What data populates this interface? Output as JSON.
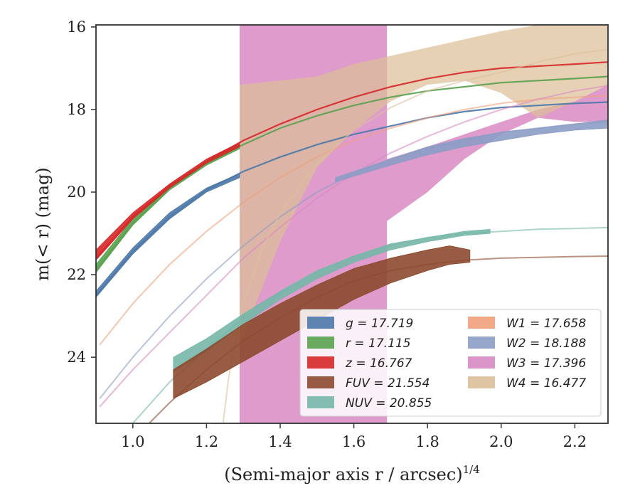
{
  "chart_data": {
    "type": "line",
    "xlabel": "(Semi-major axis r / arcsec)",
    "xlabel_exponent": "1/4",
    "ylabel": "m(< r) (mag)",
    "xlim": [
      0.9,
      2.29
    ],
    "ylim": [
      25.6,
      15.95
    ],
    "y_inverted": true,
    "xticks": [
      "1.0",
      "1.2",
      "1.4",
      "1.6",
      "1.8",
      "2.0",
      "2.2"
    ],
    "yticks": [
      "16",
      "18",
      "20",
      "22",
      "24"
    ],
    "legend_location": "lower-right",
    "legend_columns": 2,
    "series": [
      {
        "name": "g",
        "total": "17.719",
        "color": "#4c78a8",
        "model_x": [
          0.9,
          1.0,
          1.1,
          1.2,
          1.3,
          1.4,
          1.5,
          1.6,
          1.7,
          1.8,
          1.9,
          2.0,
          2.1,
          2.2,
          2.29
        ],
        "model_y": [
          22.5,
          21.45,
          20.6,
          19.95,
          19.5,
          19.15,
          18.85,
          18.6,
          18.4,
          18.2,
          18.05,
          17.95,
          17.9,
          17.85,
          17.82
        ],
        "band_x": [
          0.9,
          1.0,
          1.1,
          1.2,
          1.29
        ],
        "band_lo": [
          22.4,
          21.35,
          20.5,
          19.9,
          19.55
        ],
        "band_hi": [
          22.55,
          21.5,
          20.65,
          20.0,
          19.65
        ]
      },
      {
        "name": "r",
        "total": "17.115",
        "color": "#59a14f",
        "model_x": [
          0.9,
          1.0,
          1.1,
          1.2,
          1.3,
          1.4,
          1.5,
          1.6,
          1.7,
          1.8,
          1.9,
          2.0,
          2.1,
          2.2,
          2.29
        ],
        "model_y": [
          21.9,
          20.75,
          19.9,
          19.3,
          18.85,
          18.45,
          18.15,
          17.9,
          17.7,
          17.55,
          17.45,
          17.35,
          17.3,
          17.25,
          17.2
        ],
        "band_x": [
          0.9,
          1.0,
          1.1,
          1.2,
          1.29
        ],
        "band_lo": [
          21.75,
          20.65,
          19.85,
          19.25,
          18.85
        ],
        "band_hi": [
          21.95,
          20.8,
          19.95,
          19.35,
          18.95
        ]
      },
      {
        "name": "z",
        "total": "16.767",
        "color": "#d62728",
        "model_x": [
          0.9,
          1.0,
          1.1,
          1.2,
          1.3,
          1.4,
          1.5,
          1.6,
          1.7,
          1.8,
          1.9,
          2.0,
          2.1,
          2.2,
          2.29
        ],
        "model_y": [
          21.6,
          20.6,
          19.85,
          19.25,
          18.75,
          18.35,
          18.0,
          17.7,
          17.45,
          17.25,
          17.1,
          17.0,
          16.95,
          16.9,
          16.85
        ],
        "band_x": [
          0.9,
          1.0,
          1.1,
          1.2,
          1.29
        ],
        "band_lo": [
          21.4,
          20.5,
          19.8,
          19.2,
          18.8
        ],
        "band_hi": [
          21.65,
          20.65,
          19.9,
          19.3,
          18.9
        ]
      },
      {
        "name": "FUV",
        "total": "21.554",
        "color": "#8c4a2f",
        "model_x": [
          0.9,
          1.0,
          1.1,
          1.2,
          1.3,
          1.4,
          1.5,
          1.6,
          1.7,
          1.8,
          1.9,
          2.0,
          2.1,
          2.2,
          2.29
        ],
        "model_y": [
          27.0,
          26.0,
          25.1,
          24.3,
          23.6,
          23.05,
          22.55,
          22.15,
          21.9,
          21.75,
          21.65,
          21.6,
          21.58,
          21.56,
          21.55
        ],
        "band_x": [
          1.11,
          1.2,
          1.3,
          1.4,
          1.5,
          1.6,
          1.7,
          1.8,
          1.86,
          1.915
        ],
        "band_lo": [
          24.3,
          23.8,
          23.2,
          22.7,
          22.25,
          21.85,
          21.6,
          21.4,
          21.3,
          21.4
        ],
        "band_hi": [
          25.0,
          24.6,
          24.1,
          23.6,
          23.1,
          22.6,
          22.2,
          21.9,
          21.75,
          21.7
        ]
      },
      {
        "name": "NUV",
        "total": "20.855",
        "color": "#76b7a8",
        "model_x": [
          0.9,
          1.0,
          1.1,
          1.2,
          1.3,
          1.4,
          1.5,
          1.6,
          1.7,
          1.8,
          1.9,
          2.0,
          2.1,
          2.2,
          2.29
        ],
        "model_y": [
          26.5,
          25.6,
          24.6,
          23.8,
          23.05,
          22.45,
          21.95,
          21.55,
          21.3,
          21.1,
          21.0,
          20.95,
          20.9,
          20.88,
          20.86
        ],
        "band_x": [
          1.11,
          1.2,
          1.3,
          1.4,
          1.5,
          1.6,
          1.7,
          1.8,
          1.9,
          1.97
        ],
        "band_lo": [
          24.0,
          23.55,
          22.95,
          22.4,
          21.9,
          21.55,
          21.25,
          21.1,
          20.95,
          20.9
        ],
        "band_hi": [
          24.35,
          23.85,
          23.2,
          22.6,
          22.1,
          21.7,
          21.4,
          21.2,
          21.05,
          21.0
        ]
      },
      {
        "name": "W1",
        "total": "17.658",
        "color": "#f0a07a",
        "model_x": [
          0.91,
          1.0,
          1.1,
          1.2,
          1.3,
          1.4,
          1.5,
          1.6,
          1.7,
          1.8,
          1.9,
          2.0,
          2.1,
          2.2,
          2.29
        ],
        "model_y": [
          23.7,
          22.7,
          21.75,
          20.95,
          20.25,
          19.65,
          19.15,
          18.75,
          18.45,
          18.2,
          18.0,
          17.85,
          17.75,
          17.7,
          17.66
        ]
      },
      {
        "name": "W2",
        "total": "18.188",
        "color": "#8c9dc5",
        "model_x": [
          0.91,
          1.0,
          1.1,
          1.2,
          1.3,
          1.4,
          1.5,
          1.6,
          1.7,
          1.8,
          1.9,
          2.0,
          2.1,
          2.2,
          2.29
        ],
        "model_y": [
          25.0,
          24.0,
          23.0,
          22.1,
          21.3,
          20.6,
          20.0,
          19.55,
          19.2,
          18.95,
          18.75,
          18.55,
          18.45,
          18.35,
          18.3
        ],
        "band_x": [
          1.55,
          1.7,
          1.8,
          1.9,
          2.0,
          2.1,
          2.2,
          2.29
        ],
        "band_lo": [
          19.65,
          19.2,
          18.9,
          18.7,
          18.55,
          18.45,
          18.35,
          18.25
        ],
        "band_hi": [
          19.75,
          19.35,
          19.1,
          18.9,
          18.75,
          18.6,
          18.5,
          18.45
        ]
      },
      {
        "name": "W3",
        "total": "17.396",
        "color": "#d889c2",
        "model_x": [
          0.91,
          1.0,
          1.1,
          1.2,
          1.3,
          1.4,
          1.5,
          1.6,
          1.7,
          1.8,
          1.9,
          2.0,
          2.1,
          2.2,
          2.29
        ],
        "model_y": [
          25.2,
          24.3,
          23.4,
          22.5,
          21.6,
          20.85,
          20.15,
          19.55,
          19.05,
          18.65,
          18.3,
          18.0,
          17.75,
          17.55,
          17.42
        ],
        "band_x": [
          1.29,
          1.69,
          1.69,
          1.8,
          1.9,
          2.0,
          2.1,
          2.2,
          2.29
        ],
        "band_lo": [
          15.9,
          15.9,
          19.2,
          18.9,
          18.6,
          18.3,
          18.0,
          17.8,
          17.4
        ],
        "band_hi": [
          25.6,
          25.6,
          20.7,
          20.0,
          19.2,
          18.6,
          18.2,
          18.3,
          18.3
        ]
      },
      {
        "name": "W4",
        "total": "16.477",
        "color": "#dcbf99",
        "model_x": [
          1.245,
          1.26,
          1.28,
          1.3,
          1.35,
          1.4,
          1.5,
          1.6,
          1.7,
          1.8,
          1.9,
          2.0,
          2.1,
          2.2,
          2.29
        ],
        "model_y": [
          25.6,
          24.5,
          23.5,
          22.7,
          21.4,
          20.5,
          19.3,
          18.5,
          17.95,
          17.55,
          17.3,
          17.1,
          16.85,
          16.65,
          16.55
        ],
        "band_x": [
          1.29,
          1.4,
          1.5,
          1.6,
          1.7,
          1.8,
          1.9,
          2.0,
          2.1,
          2.2,
          2.29
        ],
        "band_lo": [
          17.4,
          17.3,
          17.2,
          16.9,
          16.7,
          16.5,
          16.3,
          16.1,
          15.95,
          15.95,
          15.95
        ],
        "band_hi": [
          23.7,
          21.2,
          19.4,
          18.5,
          17.8,
          17.4,
          17.3,
          17.6,
          18.2,
          17.8,
          17.4
        ]
      }
    ]
  }
}
